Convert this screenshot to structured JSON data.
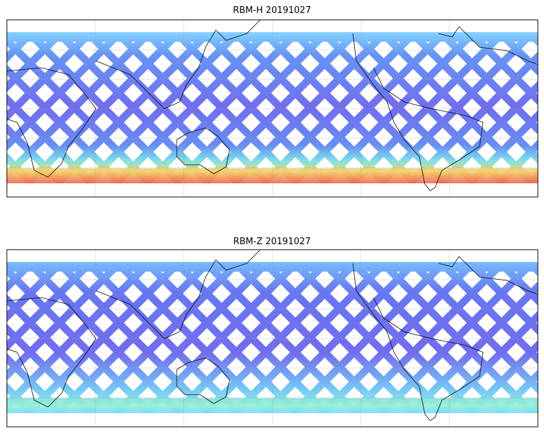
{
  "panels": [
    {
      "title": "RBM-H 20191027"
    },
    {
      "title": "RBM-Z 20191027"
    }
  ]
}
